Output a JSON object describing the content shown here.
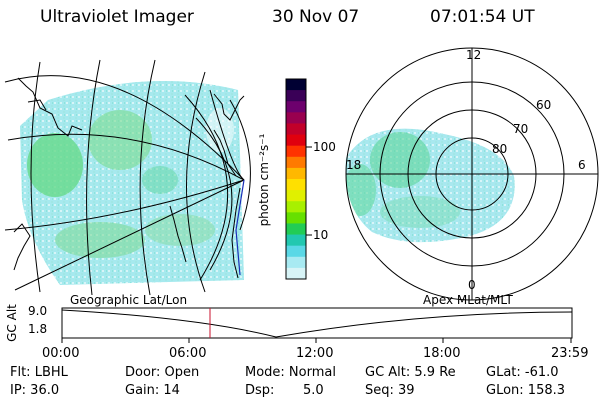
{
  "header": {
    "instrument": "Ultraviolet Imager",
    "date": "30 Nov 07",
    "time": "07:01:54 UT"
  },
  "colorbar": {
    "label": "photon cm⁻²s⁻¹",
    "ticks": [
      "100",
      "10"
    ],
    "colors": [
      "#000033",
      "#3a0057",
      "#6d006d",
      "#99004f",
      "#c2002a",
      "#e0000e",
      "#ff3300",
      "#ff7a00",
      "#ffb800",
      "#ffe000",
      "#e0f000",
      "#a8f000",
      "#66e000",
      "#22cc55",
      "#22c8b0",
      "#5ad8e6",
      "#a8eaf2",
      "#d8f4f7"
    ]
  },
  "polar": {
    "mlt_labels": {
      "top": "12",
      "left": "18",
      "right": "6",
      "bottom": "0"
    },
    "lat_labels": [
      "60",
      "70",
      "80"
    ]
  },
  "map": {
    "left_label": "Geographic Lat/Lon",
    "right_label": "Apex MLat/MLT"
  },
  "altitude_plot": {
    "ylabel": "GC Alt",
    "yticks": [
      "9.0",
      "1.8"
    ],
    "xticks": [
      "00:00",
      "06:00",
      "12:00",
      "18:00",
      "23:59"
    ],
    "marker_time": "07:01:54",
    "marker_color": "#c8102e"
  },
  "footer": {
    "flt": "Flt: LBHL",
    "door": "Door: Open",
    "mode": "Mode: Normal",
    "gc_alt": "GC Alt: 5.9 Re",
    "glat": "GLat: -61.0",
    "ip": "IP: 36.0",
    "gain": "Gain: 14",
    "dsp": "Dsp:",
    "dsp_value": "5.0",
    "seq": "Seq: 39",
    "glon": "GLon: 158.3"
  }
}
